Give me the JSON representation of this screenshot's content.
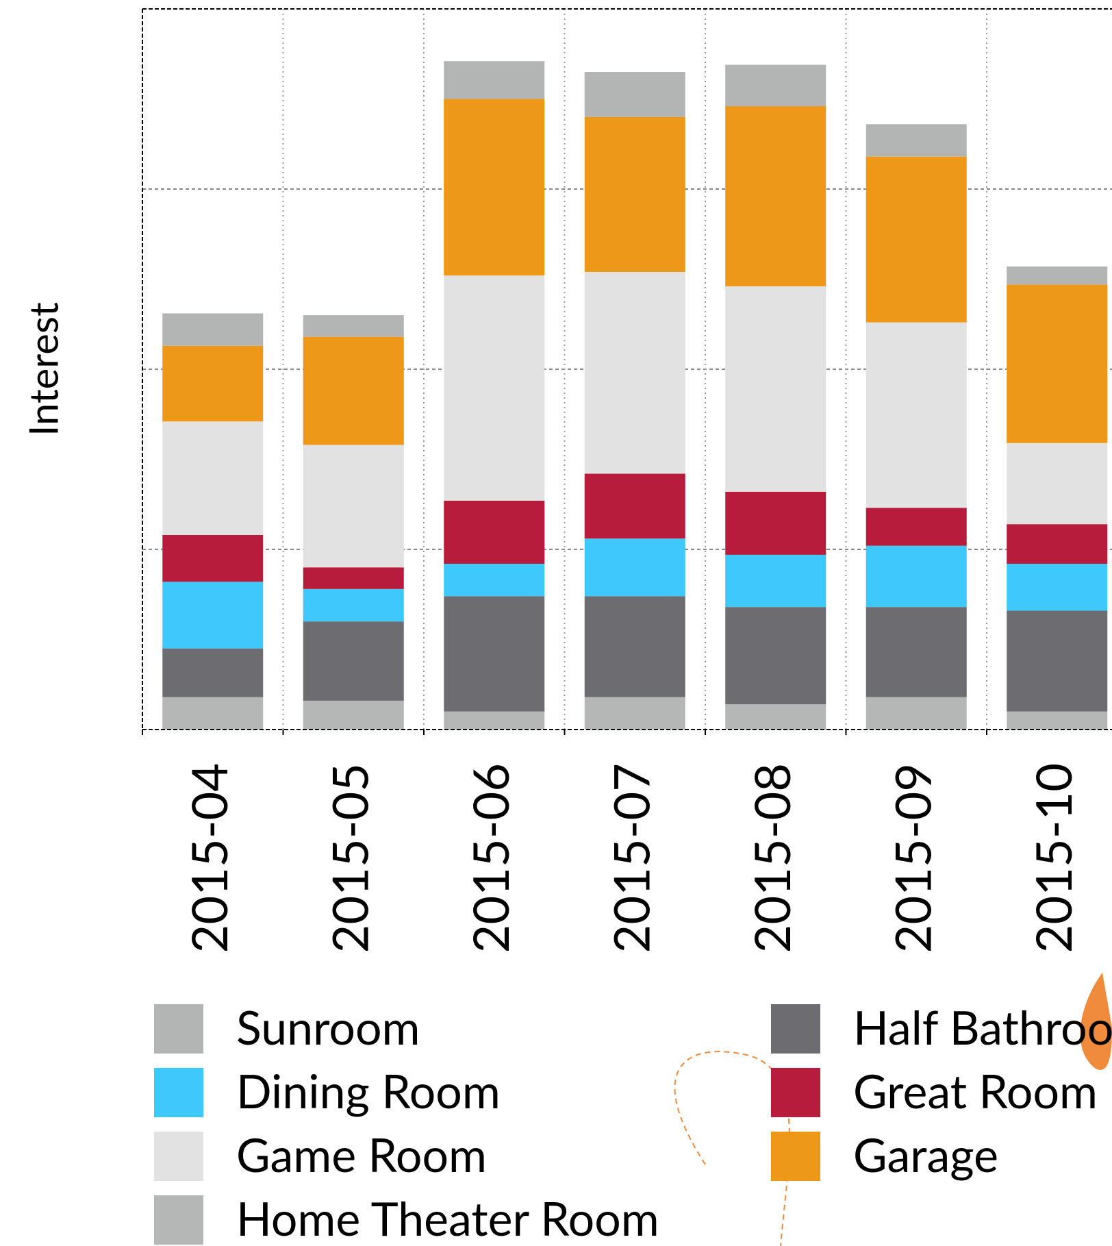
{
  "chart_data": {
    "type": "stacked_bar",
    "y_label": "Interest",
    "categories": [
      "2015-04",
      "2015-05",
      "2015-06",
      "2015-07",
      "2015-08",
      "2015-09",
      "2015-10"
    ],
    "series": [
      {
        "name": "Home Theater Room",
        "color": "#b5b6b6",
        "values": [
          1.8,
          1.6,
          1.0,
          1.8,
          1.4,
          1.8,
          1.0
        ]
      },
      {
        "name": "Half Bathroom",
        "color": "#6d6c71",
        "values": [
          2.7,
          4.4,
          6.4,
          5.6,
          5.4,
          5.0,
          5.6
        ]
      },
      {
        "name": "Dining Room",
        "color": "#3ec8fb",
        "values": [
          3.7,
          1.8,
          1.8,
          3.2,
          2.9,
          3.4,
          2.6
        ]
      },
      {
        "name": "Great Room",
        "color": "#b81c3c",
        "values": [
          2.6,
          1.2,
          3.5,
          3.6,
          3.5,
          2.1,
          2.2
        ]
      },
      {
        "name": "Game Room",
        "color": "#e2e2e2",
        "values": [
          6.3,
          6.8,
          12.5,
          11.2,
          11.4,
          10.3,
          4.5
        ]
      },
      {
        "name": "Garage",
        "color": "#ee981a",
        "values": [
          4.2,
          6.0,
          9.8,
          8.6,
          10.0,
          9.2,
          8.8
        ]
      },
      {
        "name": "Sunroom",
        "color": "#b3b4b4",
        "values": [
          1.8,
          1.2,
          2.1,
          2.5,
          2.3,
          1.8,
          1.0
        ]
      }
    ],
    "legend_order": [
      6,
      2,
      4,
      0,
      1,
      3,
      5
    ],
    "ylim": [
      0,
      40
    ],
    "yticks": [
      0,
      10,
      20,
      30,
      40
    ],
    "grid": true
  }
}
